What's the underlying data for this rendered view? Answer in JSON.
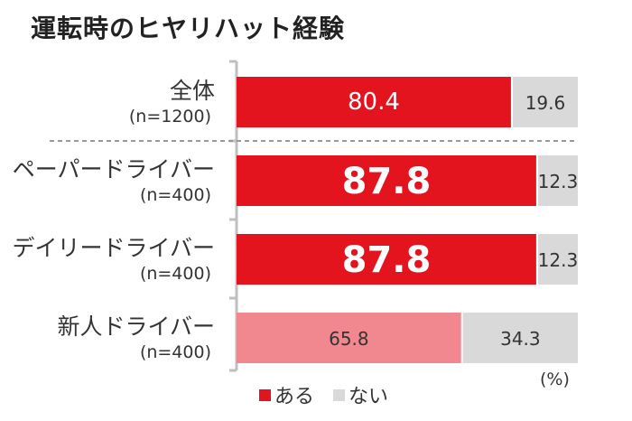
{
  "chart_data": {
    "type": "bar",
    "stacked": true,
    "orientation": "horizontal",
    "title": "運転時のヒヤリハット経験",
    "unit": "(%)",
    "xlim": [
      0,
      100
    ],
    "categories": [
      {
        "name": "全体",
        "n": "(n=1200)"
      },
      {
        "name": "ペーパードライバー",
        "n": "(n=400)"
      },
      {
        "name": "デイリードライバー",
        "n": "(n=400)"
      },
      {
        "name": "新人ドライバー",
        "n": "(n=400)"
      }
    ],
    "series": [
      {
        "name": "ある",
        "values": [
          80.4,
          87.8,
          87.8,
          65.8
        ],
        "labels": [
          "80.4",
          "87.8",
          "87.8",
          "65.8"
        ]
      },
      {
        "name": "ない",
        "values": [
          19.6,
          12.3,
          12.3,
          34.3
        ],
        "labels": [
          "19.6",
          "12.3",
          "12.3",
          "34.3"
        ]
      }
    ],
    "highlight": [
      false,
      true,
      true,
      false
    ],
    "legend_position": "bottom",
    "colors": {
      "aru": "#e3141e",
      "aru_light": "#f2888f",
      "nai": "#d9d9d9",
      "axis": "#bfbfbf",
      "separator": "#999999"
    }
  }
}
